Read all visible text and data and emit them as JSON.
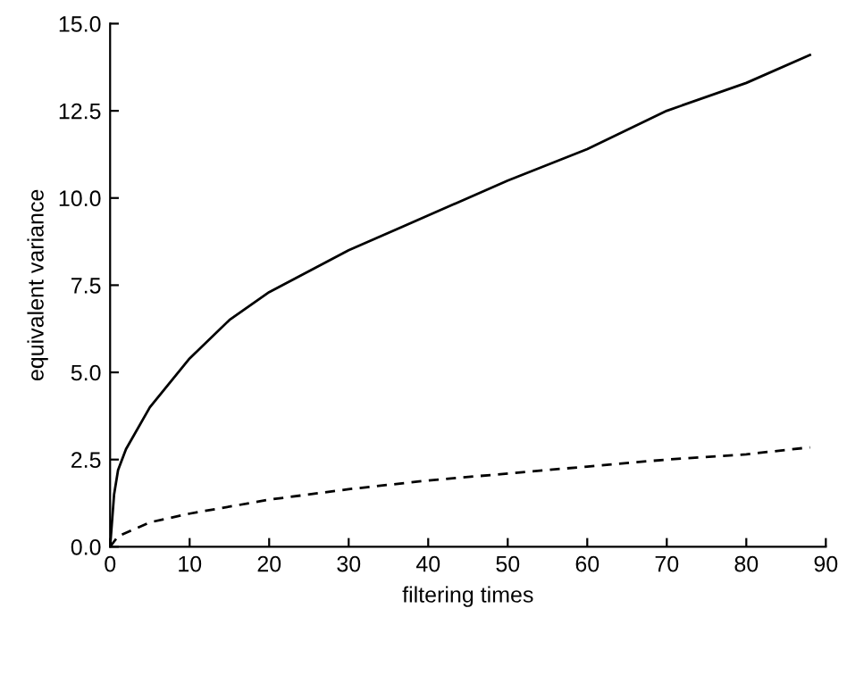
{
  "chart_data": {
    "type": "line",
    "xlabel": "filtering times",
    "ylabel": "equivalent variance",
    "xlim": [
      0,
      90
    ],
    "ylim": [
      0,
      15
    ],
    "xticks": [
      0,
      10,
      20,
      30,
      40,
      50,
      60,
      70,
      80,
      90
    ],
    "yticks": [
      {
        "value": 0,
        "label": "0.0"
      },
      {
        "value": 2.5,
        "label": "2.5"
      },
      {
        "value": 5,
        "label": "5.0"
      },
      {
        "value": 7.5,
        "label": "7.5"
      },
      {
        "value": 10,
        "label": "10.0"
      },
      {
        "value": 12.5,
        "label": "12.5"
      },
      {
        "value": 15,
        "label": "15.0"
      }
    ],
    "grid": false,
    "legend": false,
    "series": [
      {
        "color": "#000000",
        "line_style": "solid",
        "x": [
          0,
          0.5,
          1,
          2,
          5,
          10,
          15,
          20,
          30,
          40,
          50,
          60,
          70,
          80,
          88
        ],
        "values": [
          0,
          1.5,
          2.2,
          2.8,
          4.0,
          5.4,
          6.5,
          7.3,
          8.5,
          9.5,
          10.5,
          11.4,
          12.5,
          13.3,
          14.1
        ]
      },
      {
        "color": "#000000",
        "line_style": "dashed",
        "x": [
          0,
          1,
          5,
          10,
          20,
          30,
          40,
          50,
          60,
          70,
          80,
          88
        ],
        "values": [
          0,
          0.3,
          0.7,
          0.95,
          1.35,
          1.65,
          1.9,
          2.1,
          2.3,
          2.5,
          2.65,
          2.85
        ]
      }
    ]
  }
}
